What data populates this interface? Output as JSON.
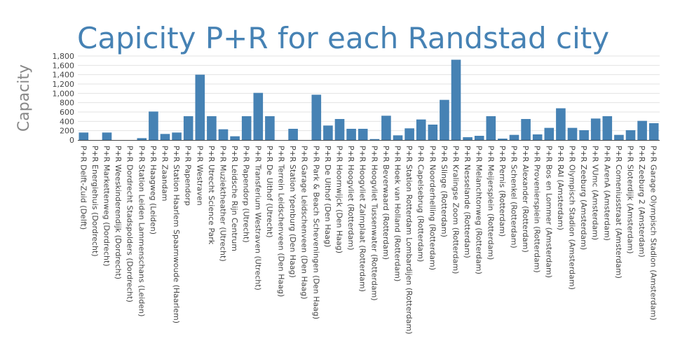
{
  "chart_data": {
    "type": "bar",
    "title": "Capicity P+R for each Randstad city",
    "xlabel": "",
    "ylabel": "Capacity",
    "ylim": [
      0,
      1800
    ],
    "yticks": [
      "0",
      "200",
      "400",
      "600",
      "800",
      "1,000",
      "1,200",
      "1,400",
      "1,600",
      "1,800"
    ],
    "ytick_values": [
      0,
      200,
      400,
      600,
      800,
      1000,
      1200,
      1400,
      1600,
      1800
    ],
    "grid": true,
    "bar_color": "#4682b4",
    "categories": [
      "P+R Delft-Zuid (Delft)",
      "P+R Energiehuis (Dordrecht)",
      "P+R Markettenweg (Dordrecht)",
      "P+R Weeskinderendijk (Dordrecht)",
      "P+R Dordrecht Stadspolders (Dordrecht)",
      "P+R Station Leiden Lammenschans (Leiden)",
      "P+R Haagweg (Leiden)",
      "P+R Zaandam",
      "P+R Station Haarlem Spaarnwoude (Haarlem)",
      "P+R Papendorp",
      "P+R Westraven",
      "P+R Utrecht Science Park",
      "P+R Muziektheather (Utrecht)",
      "P+R Leidsche Rijn Centrum",
      "P+R Papendorp (Utrecht)",
      "P+R Transferium Westraven (Utrecht)",
      "P+R De Uithof (Utrecht)",
      "P+R Terrein Leidschenveen (Den Haag)",
      "P+R Station Ypenburg (Den Haag)",
      "P+R Garage Leidschenveen (Den Haag)",
      "P+R Park & Beach Scheveningen (Den Haag)",
      "P+R De Uithof (Den Haag)",
      "P+R Hoornwijck (Den Haag)",
      "P+R Hoogvliet (Rotterdam)",
      "P+R Hoogvliet Zalmplaat (Rotterdam)",
      "P+R Hoogvliet Tussenwater (Rotterdam)",
      "P+R Beverwaard (Rotterdam)",
      "P+R Hoek van Holland (Rotterdam)",
      "P+R Station Rotterdam Lombardijen (Rotterdam)",
      "P+R Capelsebrug (Rotterdam)",
      "P+R Noorderhelling (Rotterdam)",
      "P+R Slinge (Rotterdam)",
      "P+R Kralingse Zoom (Rotterdam)",
      "P+R Nesselande (Rotterdam)",
      "P+R Melanchtonweg (Rotterdam)",
      "P+R Meijersplein (Rotterdam)",
      "P+R Pernis (Rotterdam)",
      "P+R Schenkel (Rotterdam)",
      "P+R Alexander (Rotterdam)",
      "P+R Provenierspiein (Rotterdam)",
      "P+R Bos en Lommer (Amsterdam)",
      "P+R RAI (Amsterdam)",
      "P+R Olympisch Stadion (Amsterdam)",
      "P+R Zeeburg (Amsterdam)",
      "P+R VUmc (Amsterdam)",
      "P+R ArenA (Amsterdam)",
      "P+R Comeniusstraat (Amsterdam)",
      "P+R Sloterdijk (Amsterdam)",
      "P+R Zeeburg 2 (Amsterdam)",
      "P+R Garage Olympisch Stadion (Amsterdam)"
    ],
    "values": [
      160,
      0,
      160,
      0,
      0,
      40,
      610,
      130,
      160,
      510,
      1400,
      510,
      230,
      80,
      510,
      1010,
      510,
      0,
      240,
      0,
      970,
      310,
      450,
      240,
      240,
      20,
      520,
      100,
      250,
      440,
      330,
      860,
      1720,
      60,
      90,
      510,
      30,
      110,
      450,
      120,
      260,
      680,
      260,
      210,
      460,
      510,
      110,
      210,
      410,
      360
    ]
  }
}
